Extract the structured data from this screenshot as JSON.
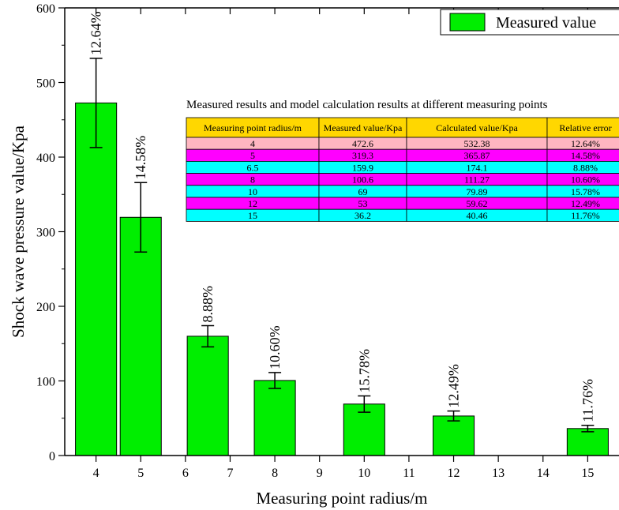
{
  "chart_data": {
    "type": "bar",
    "xlabel": "Measuring point radius/m",
    "ylabel": "Shock wave pressure value/Kpa",
    "xlim": [
      3.3,
      15.7
    ],
    "ylim": [
      0,
      600
    ],
    "x_ticks": [
      4,
      5,
      6,
      7,
      8,
      9,
      10,
      11,
      12,
      13,
      14,
      15
    ],
    "y_ticks": [
      0,
      100,
      200,
      300,
      400,
      500,
      600
    ],
    "bar_color": "#00ee00",
    "legend": {
      "label": "Measured value",
      "position": "top-right"
    },
    "bars": [
      {
        "x": 4,
        "value": 472.6,
        "error_high": 532.38,
        "error_low": 412.82,
        "label": "12.64%"
      },
      {
        "x": 5,
        "value": 319.3,
        "error_high": 365.87,
        "error_low": 272.73,
        "label": "14.58%"
      },
      {
        "x": 6.5,
        "value": 159.9,
        "error_high": 174.1,
        "error_low": 145.7,
        "label": "8.88%"
      },
      {
        "x": 8,
        "value": 100.6,
        "error_high": 111.27,
        "error_low": 89.93,
        "label": "10.60%"
      },
      {
        "x": 10,
        "value": 69,
        "error_high": 79.89,
        "error_low": 58.11,
        "label": "15.78%"
      },
      {
        "x": 12,
        "value": 53,
        "error_high": 59.62,
        "error_low": 46.38,
        "label": "12.49%"
      },
      {
        "x": 15,
        "value": 36.2,
        "error_high": 40.46,
        "error_low": 31.94,
        "label": "11.76%"
      }
    ],
    "table": {
      "title": "Measured results and model calculation results at different measuring points",
      "columns": [
        "Measuring point radius/m",
        "Measured value/Kpa",
        "Calculated value/Kpa",
        "Relative error"
      ],
      "header_color": "#ffd700",
      "rows": [
        {
          "cells": [
            "4",
            "472.6",
            "532.38",
            "12.64%"
          ],
          "color": "#ffb6c1"
        },
        {
          "cells": [
            "5",
            "319.3",
            "365.87",
            "14.58%"
          ],
          "color": "#ff00ff"
        },
        {
          "cells": [
            "6.5",
            "159.9",
            "174.1",
            "8.88%"
          ],
          "color": "#00ffff"
        },
        {
          "cells": [
            "8",
            "100.6",
            "111.27",
            "10.60%"
          ],
          "color": "#ff00ff"
        },
        {
          "cells": [
            "10",
            "69",
            "79.89",
            "15.78%"
          ],
          "color": "#00ffff"
        },
        {
          "cells": [
            "12",
            "53",
            "59.62",
            "12.49%"
          ],
          "color": "#ff00ff"
        },
        {
          "cells": [
            "15",
            "36.2",
            "40.46",
            "11.76%"
          ],
          "color": "#00ffff"
        }
      ]
    }
  }
}
